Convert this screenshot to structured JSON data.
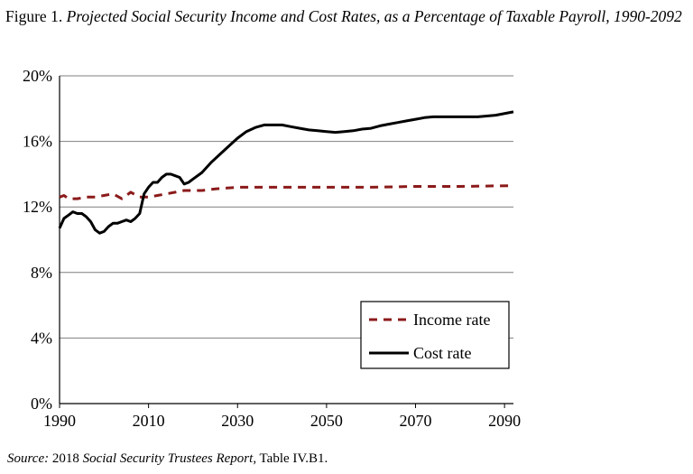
{
  "figure_title": {
    "prefix": "Figure 1.",
    "text": "Projected Social Security Income and Cost Rates, as a Percentage of Taxable Payroll, 1990-2092"
  },
  "source": {
    "label": "Source:",
    "pre": "2018",
    "report": "Social Security Trustees Report",
    "post": ", Table IV.B1."
  },
  "colors": {
    "income": "#8b1a1a",
    "cost": "#000000",
    "grid": "#7f7f7f"
  },
  "chart_data": {
    "type": "line",
    "title": "Projected Social Security Income and Cost Rates, as a Percentage of Taxable Payroll, 1990-2092",
    "xlabel": "",
    "ylabel": "",
    "xlim": [
      1990,
      2092
    ],
    "ylim": [
      0,
      20
    ],
    "xticks": [
      1990,
      2010,
      2030,
      2050,
      2070,
      2090
    ],
    "yticks": [
      0,
      4,
      8,
      12,
      16,
      20
    ],
    "ytick_labels": [
      "0%",
      "4%",
      "8%",
      "12%",
      "16%",
      "20%"
    ],
    "grid": "horizontal",
    "legend_position": "bottom-right",
    "series": [
      {
        "name": "Income rate",
        "style": "dashed",
        "color": "#8b1a1a",
        "points": [
          [
            1990,
            12.6
          ],
          [
            1991,
            12.7
          ],
          [
            1992,
            12.5
          ],
          [
            1994,
            12.5
          ],
          [
            1996,
            12.6
          ],
          [
            1998,
            12.6
          ],
          [
            2000,
            12.7
          ],
          [
            2002,
            12.8
          ],
          [
            2004,
            12.5
          ],
          [
            2006,
            12.9
          ],
          [
            2008,
            12.6
          ],
          [
            2010,
            12.6
          ],
          [
            2012,
            12.7
          ],
          [
            2014,
            12.8
          ],
          [
            2016,
            12.9
          ],
          [
            2018,
            13.0
          ],
          [
            2020,
            13.0
          ],
          [
            2022,
            13.0
          ],
          [
            2025,
            13.1
          ],
          [
            2030,
            13.2
          ],
          [
            2040,
            13.2
          ],
          [
            2050,
            13.2
          ],
          [
            2060,
            13.2
          ],
          [
            2070,
            13.25
          ],
          [
            2080,
            13.25
          ],
          [
            2092,
            13.3
          ]
        ]
      },
      {
        "name": "Cost rate",
        "style": "solid",
        "color": "#000000",
        "points": [
          [
            1990,
            10.7
          ],
          [
            1991,
            11.3
          ],
          [
            1992,
            11.5
          ],
          [
            1993,
            11.7
          ],
          [
            1994,
            11.6
          ],
          [
            1995,
            11.6
          ],
          [
            1996,
            11.4
          ],
          [
            1997,
            11.1
          ],
          [
            1998,
            10.6
          ],
          [
            1999,
            10.4
          ],
          [
            2000,
            10.5
          ],
          [
            2001,
            10.8
          ],
          [
            2002,
            11.0
          ],
          [
            2003,
            11.0
          ],
          [
            2004,
            11.1
          ],
          [
            2005,
            11.2
          ],
          [
            2006,
            11.1
          ],
          [
            2007,
            11.3
          ],
          [
            2008,
            11.6
          ],
          [
            2009,
            12.8
          ],
          [
            2010,
            13.2
          ],
          [
            2011,
            13.5
          ],
          [
            2012,
            13.5
          ],
          [
            2013,
            13.8
          ],
          [
            2014,
            14.0
          ],
          [
            2015,
            14.0
          ],
          [
            2016,
            13.9
          ],
          [
            2017,
            13.8
          ],
          [
            2018,
            13.4
          ],
          [
            2019,
            13.5
          ],
          [
            2020,
            13.7
          ],
          [
            2022,
            14.1
          ],
          [
            2024,
            14.7
          ],
          [
            2026,
            15.2
          ],
          [
            2028,
            15.7
          ],
          [
            2030,
            16.2
          ],
          [
            2032,
            16.6
          ],
          [
            2034,
            16.85
          ],
          [
            2036,
            17.0
          ],
          [
            2038,
            17.0
          ],
          [
            2040,
            17.0
          ],
          [
            2042,
            16.9
          ],
          [
            2044,
            16.8
          ],
          [
            2046,
            16.7
          ],
          [
            2048,
            16.65
          ],
          [
            2050,
            16.6
          ],
          [
            2052,
            16.55
          ],
          [
            2054,
            16.6
          ],
          [
            2056,
            16.65
          ],
          [
            2058,
            16.75
          ],
          [
            2060,
            16.8
          ],
          [
            2062,
            16.95
          ],
          [
            2064,
            17.05
          ],
          [
            2066,
            17.15
          ],
          [
            2068,
            17.25
          ],
          [
            2070,
            17.35
          ],
          [
            2072,
            17.45
          ],
          [
            2074,
            17.5
          ],
          [
            2076,
            17.5
          ],
          [
            2080,
            17.5
          ],
          [
            2084,
            17.5
          ],
          [
            2088,
            17.6
          ],
          [
            2092,
            17.8
          ]
        ]
      }
    ]
  }
}
